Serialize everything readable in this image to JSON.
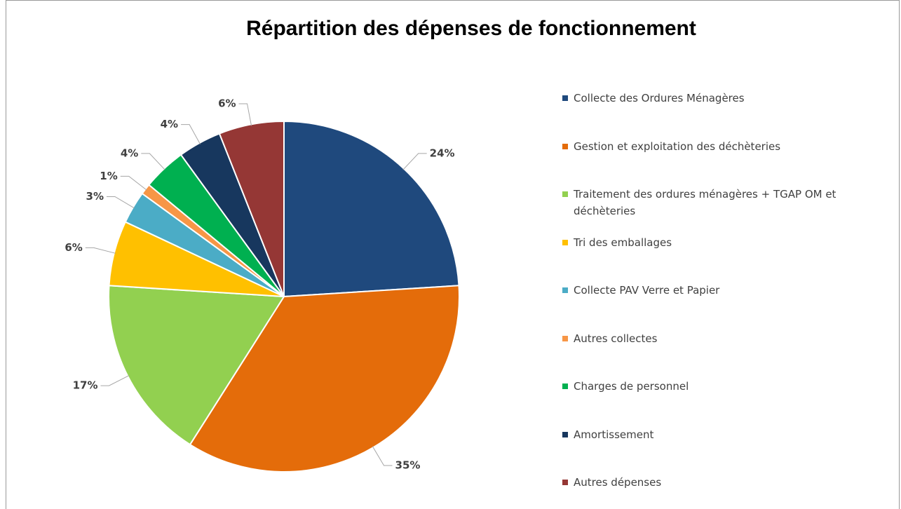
{
  "chart_data": {
    "type": "pie",
    "title": "Répartition des dépenses de fonctionnement",
    "categories": [
      "Collecte des Ordures Ménagères",
      "Gestion et exploitation des déchèteries",
      "Traitement des ordures ménagères + TGAP OM et déchèteries",
      "Tri des emballages",
      "Collecte PAV Verre et Papier",
      "Autres collectes",
      "Charges de personnel",
      "Amortissement",
      "Autres dépenses"
    ],
    "values": [
      24,
      35,
      17,
      6,
      3,
      1,
      4,
      4,
      6
    ],
    "value_labels": [
      "24%",
      "35%",
      "17%",
      "6%",
      "3%",
      "1%",
      "4%",
      "4%",
      "6%"
    ],
    "colors": [
      "#1f497d",
      "#e46c0a",
      "#92d050",
      "#ffc000",
      "#4bacc6",
      "#f79646",
      "#00b050",
      "#17375e",
      "#953735"
    ],
    "legend": "right"
  }
}
